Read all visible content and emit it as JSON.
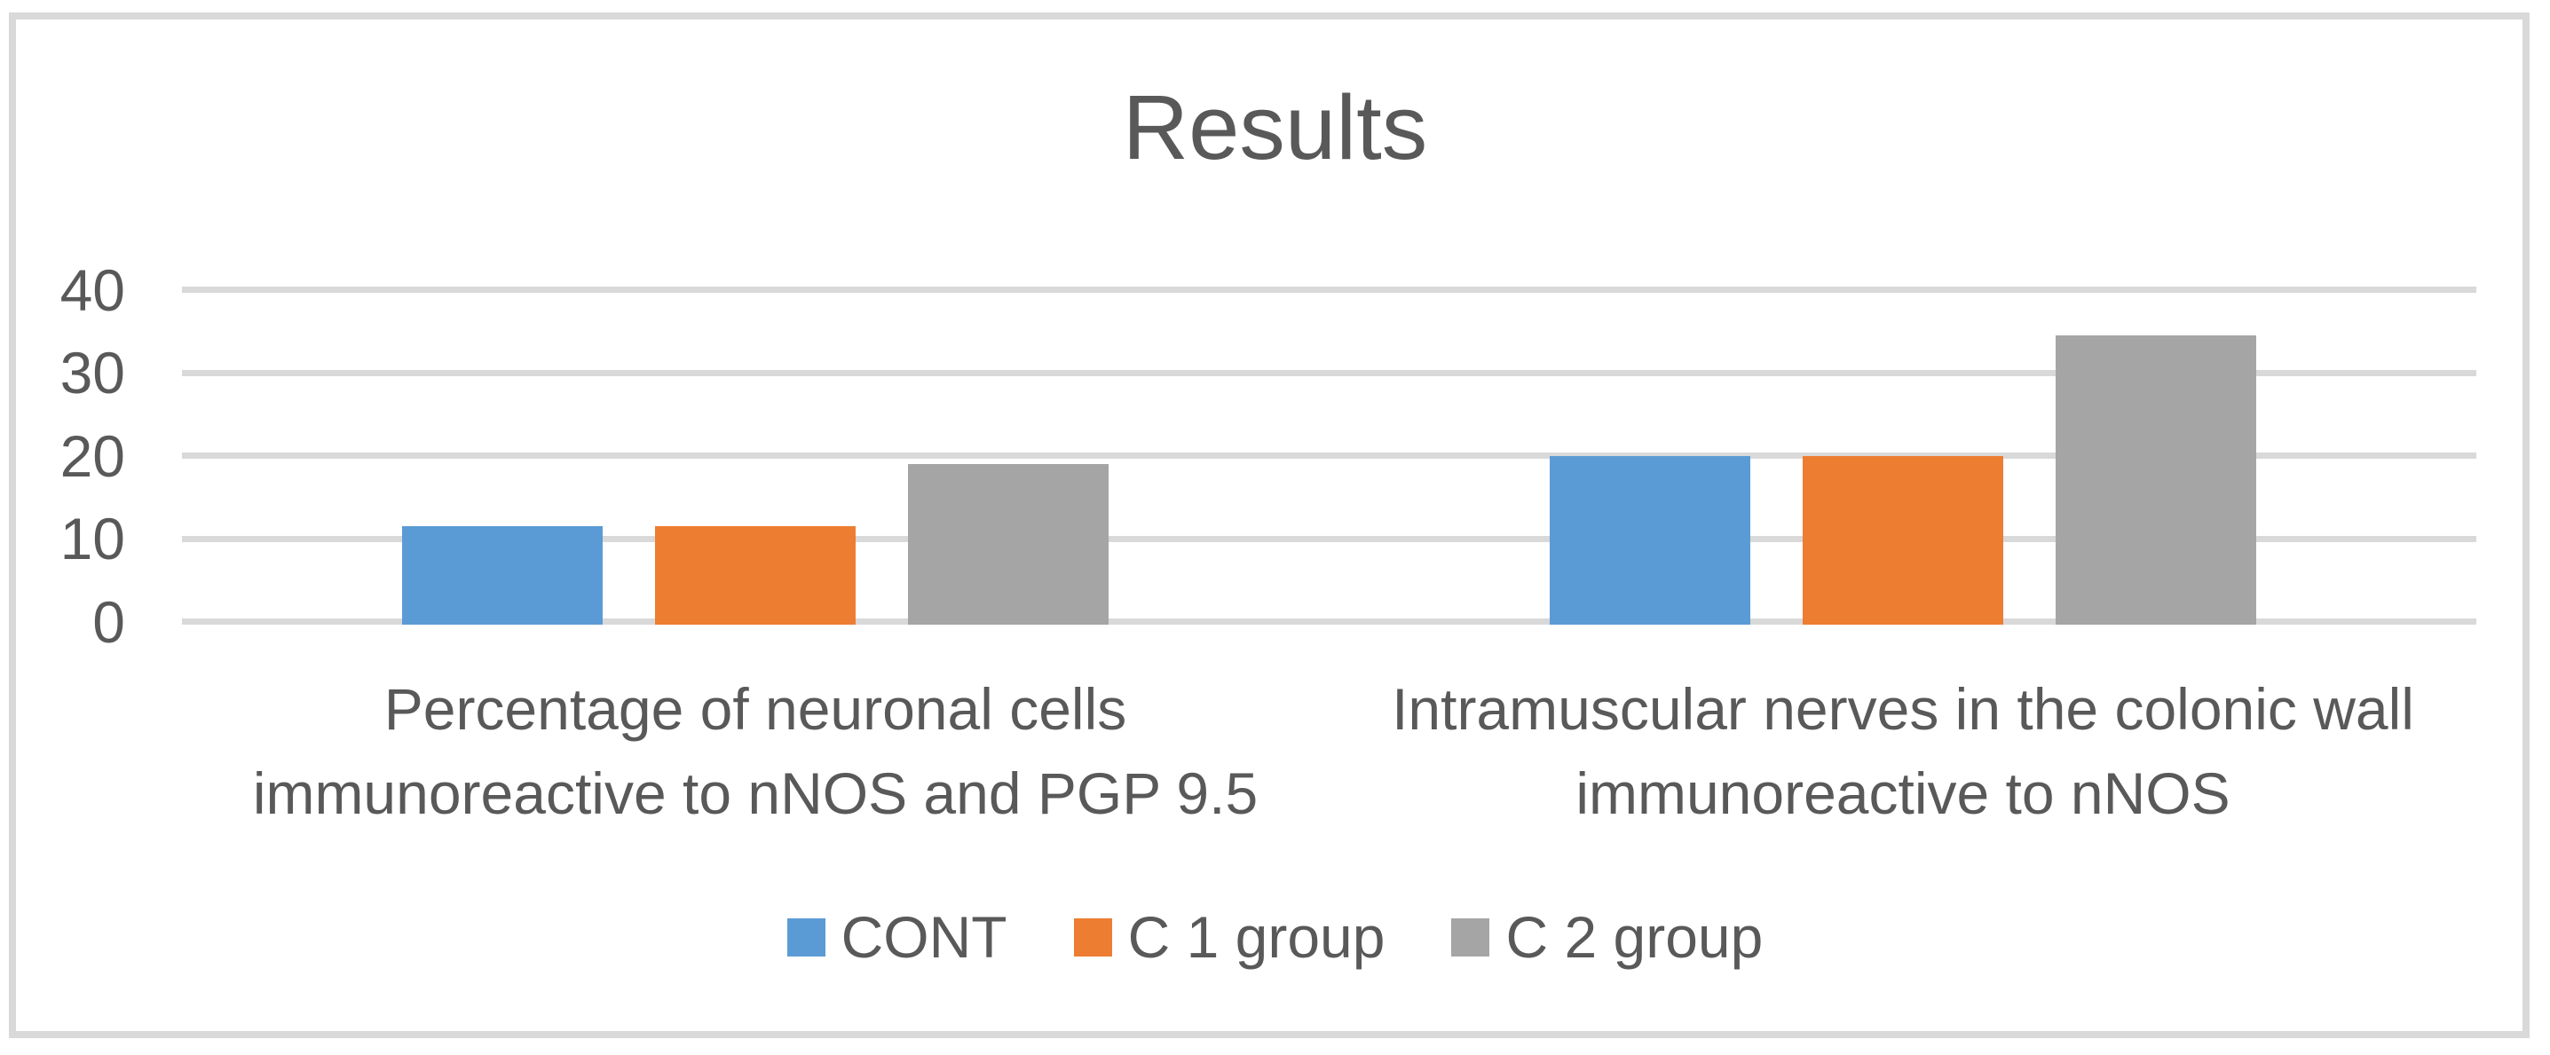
{
  "chart_data": {
    "type": "bar",
    "title": "Results",
    "categories": [
      "Percentage of neuronal cells immunoreactive to nNOS and PGP 9.5",
      "Intramuscular nerves in the colonic wall immunoreactive to nNOS"
    ],
    "series": [
      {
        "name": "CONT",
        "color": "#5B9BD5",
        "values": [
          11.5,
          20
        ]
      },
      {
        "name": "C 1 group",
        "color": "#ED7D31",
        "values": [
          11.5,
          20
        ]
      },
      {
        "name": "C 2 group",
        "color": "#A5A5A5",
        "values": [
          19,
          34.5
        ]
      }
    ],
    "y_axis": {
      "min": 0,
      "max": 40,
      "ticks": [
        0,
        10,
        20,
        30,
        40
      ]
    },
    "grid": true,
    "legend_position": "bottom",
    "colors": {
      "text": "#595959",
      "gridline": "#D9D9D9",
      "border": "#D9D9D9",
      "background": "#FFFFFF"
    }
  }
}
